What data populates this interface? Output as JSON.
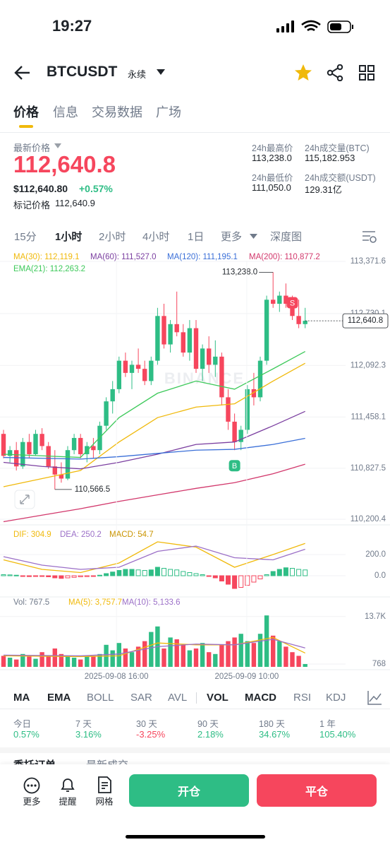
{
  "status_bar": {
    "time": "19:27"
  },
  "header": {
    "symbol": "BTCUSDT",
    "contract": "永续"
  },
  "tabs": [
    "价格",
    "信息",
    "交易数据",
    "广场"
  ],
  "price_info": {
    "latest_label": "最新价格",
    "latest_price": "112,640.8",
    "usd_price": "$112,640.80",
    "change": "+0.57%",
    "mark_label": "标记价格",
    "mark_price": "112,640.9",
    "stats": [
      {
        "label": "24h最高价",
        "value": "113,238.0"
      },
      {
        "label": "24h成交量(BTC)",
        "value": "115,182.953"
      },
      {
        "label": "24h最低价",
        "value": "111,050.0"
      },
      {
        "label": "24h成交额(USDT)",
        "value": "129.31亿"
      }
    ]
  },
  "intervals": [
    "15分",
    "1小时",
    "2小时",
    "4小时",
    "1日",
    "更多",
    "深度图"
  ],
  "chart_data": [
    {
      "type": "candlestick",
      "watermark": "BINANCE",
      "up_color": "#2ebd85",
      "down_color": "#f6465d",
      "ylim": [
        110200.4,
        113371.6
      ],
      "yticks": [
        {
          "value": 113371.6,
          "label": "113,371.6"
        },
        {
          "value": 112730.1,
          "label": "112,730.1"
        },
        {
          "value": 112092.3,
          "label": "112,092.3"
        },
        {
          "value": 111458.1,
          "label": "111,458.1"
        },
        {
          "value": 110827.5,
          "label": "110,827.5"
        },
        {
          "value": 110200.4,
          "label": "110,200.4"
        }
      ],
      "grid": true,
      "ohlc": [
        [
          111250,
          111300,
          110950,
          110980
        ],
        [
          110980,
          111100,
          110900,
          111050
        ],
        [
          111050,
          111150,
          110800,
          110850
        ],
        [
          110850,
          111200,
          110820,
          111150
        ],
        [
          111150,
          111250,
          110950,
          111000
        ],
        [
          111000,
          111300,
          110980,
          111250
        ],
        [
          111250,
          111320,
          111050,
          111100
        ],
        [
          111100,
          111150,
          110820,
          110850
        ],
        [
          110850,
          111050,
          110566.5,
          110750
        ],
        [
          110750,
          110900,
          110650,
          110700
        ],
        [
          110700,
          111100,
          110680,
          111050
        ],
        [
          111050,
          111250,
          111000,
          111200
        ],
        [
          111200,
          111250,
          110950,
          111000
        ],
        [
          111000,
          111150,
          110900,
          111100
        ],
        [
          111100,
          111200,
          110950,
          111050
        ],
        [
          111050,
          111400,
          111000,
          111350
        ],
        [
          111350,
          111700,
          111300,
          111650
        ],
        [
          111650,
          111900,
          111500,
          111800
        ],
        [
          111800,
          112200,
          111750,
          112150
        ],
        [
          112150,
          112250,
          111950,
          112000
        ],
        [
          112000,
          112150,
          111800,
          112100
        ],
        [
          112100,
          112300,
          112000,
          112050
        ],
        [
          112050,
          112150,
          111850,
          111900
        ],
        [
          111900,
          112200,
          111850,
          112150
        ],
        [
          112150,
          112800,
          112100,
          112700
        ],
        [
          112700,
          112850,
          112300,
          112350
        ],
        [
          112350,
          112650,
          112250,
          112600
        ],
        [
          112600,
          113000,
          112450,
          112500
        ],
        [
          112500,
          112600,
          112200,
          112250
        ],
        [
          112250,
          112650,
          112150,
          112550
        ],
        [
          112550,
          112650,
          112000,
          112050
        ],
        [
          112050,
          112350,
          111900,
          112300
        ],
        [
          112300,
          112450,
          112000,
          112100
        ],
        [
          112100,
          112400,
          111950,
          112200
        ],
        [
          112200,
          112250,
          111600,
          111700
        ],
        [
          111700,
          111800,
          111300,
          111400
        ],
        [
          111400,
          111500,
          111050,
          111150
        ],
        [
          111150,
          111350,
          111050,
          111300
        ],
        [
          111300,
          111850,
          111250,
          111800
        ],
        [
          111800,
          112000,
          111600,
          111700
        ],
        [
          111700,
          112200,
          111650,
          112150
        ],
        [
          112150,
          112950,
          112100,
          112900
        ],
        [
          112900,
          113238.0,
          112800,
          112850
        ],
        [
          112850,
          113000,
          112750,
          112950
        ],
        [
          112950,
          113100,
          112800,
          112850
        ],
        [
          112850,
          112950,
          112650,
          112700
        ],
        [
          112700,
          112900,
          112550,
          112600
        ],
        [
          112600,
          112800,
          112550,
          112640.8
        ]
      ],
      "series": [
        {
          "name": "MA(30): 112,119.1",
          "color": "#f0b90b",
          "x": [
            0,
            6,
            12,
            18,
            24,
            30,
            36,
            42,
            47
          ],
          "values": [
            110600,
            110700,
            110800,
            111150,
            111450,
            111580,
            111620,
            111900,
            112119.1
          ]
        },
        {
          "name": "MA(60): 111,527.0",
          "color": "#7b3fa0",
          "x": [
            0,
            6,
            12,
            18,
            24,
            30,
            36,
            42,
            47
          ],
          "values": [
            110900,
            110850,
            110820,
            110900,
            111000,
            111120,
            111150,
            111350,
            111527.0
          ]
        },
        {
          "name": "MA(120): 111,195.1",
          "color": "#3a6fd8",
          "x": [
            0,
            6,
            12,
            18,
            24,
            30,
            36,
            42,
            47
          ],
          "values": [
            110960,
            110950,
            110940,
            110970,
            111010,
            111050,
            111060,
            111120,
            111195.1
          ]
        },
        {
          "name": "MA(200): 110,877.2",
          "color": "#d2386c",
          "x": [
            0,
            6,
            12,
            18,
            24,
            30,
            36,
            42,
            47
          ],
          "values": [
            110170,
            110250,
            110330,
            110420,
            110500,
            110580,
            110650,
            110760,
            110877.2
          ]
        },
        {
          "name": "EMA(21): 112,263.2",
          "color": "#3dc95a",
          "x": [
            0,
            6,
            12,
            18,
            24,
            30,
            36,
            42,
            47
          ],
          "values": [
            111000,
            110980,
            110960,
            111450,
            111750,
            111900,
            111800,
            112050,
            112263.2
          ]
        }
      ],
      "annotations": [
        {
          "text": "113,238.0",
          "x": 42,
          "value": 113238.0
        },
        {
          "text": "110,566.5",
          "x": 8,
          "value": 110566.5
        }
      ],
      "last_price": {
        "value": 112640.8,
        "label": "112,640.8"
      },
      "markers": [
        {
          "label": "S",
          "x": 45,
          "color": "#f6465d"
        },
        {
          "label": "B",
          "x": 36,
          "color": "#2ebd85"
        }
      ]
    },
    {
      "type": "macd",
      "up_color": "#2ebd85",
      "down_color": "#f6465d",
      "ylim": [
        -200,
        333.3
      ],
      "yticks": [
        {
          "value": 200,
          "label": "200.0"
        },
        {
          "value": 0,
          "label": "0.0"
        }
      ],
      "series": [
        {
          "name": "DIF: 304.9",
          "color": "#f0b90b",
          "x": [
            0,
            6,
            12,
            18,
            24,
            30,
            36,
            42,
            47
          ],
          "values": [
            150,
            60,
            30,
            120,
            320,
            270,
            80,
            200,
            304.9
          ]
        },
        {
          "name": "DEA: 250.2",
          "color": "#9b6fc7",
          "x": [
            0,
            6,
            12,
            18,
            24,
            30,
            36,
            42,
            47
          ],
          "values": [
            180,
            100,
            60,
            80,
            230,
            280,
            170,
            150,
            250.2
          ]
        },
        {
          "name": "MACD: 54.7",
          "color": "#c99400",
          "type": "bar",
          "values": [
            10,
            8,
            5,
            -5,
            -8,
            -5,
            -3,
            -10,
            -20,
            -25,
            -20,
            -15,
            -10,
            -8,
            -5,
            5,
            20,
            35,
            50,
            60,
            60,
            55,
            50,
            55,
            80,
            70,
            60,
            55,
            40,
            30,
            20,
            10,
            -5,
            -20,
            -50,
            -80,
            -120,
            -110,
            -90,
            -60,
            -30,
            10,
            40,
            60,
            75,
            70,
            60,
            54.7
          ]
        }
      ]
    },
    {
      "type": "volume",
      "ylim": [
        0,
        14230
      ],
      "yticks": [
        {
          "value": 13700,
          "label": "13.7K"
        },
        768
      ],
      "xticks": [
        {
          "value": 17.6,
          "label": "2025-09-08 16:00"
        },
        {
          "value": 37.9,
          "label": "2025-09-09 10:00"
        }
      ],
      "series": [
        {
          "name": "Vol: 767.5",
          "color": "#707a8a",
          "type": "bar",
          "values": [
            3000,
            2500,
            2000,
            3500,
            2800,
            2200,
            4000,
            3000,
            5000,
            3500,
            3000,
            2500,
            2000,
            2800,
            3000,
            3500,
            6000,
            4500,
            6500,
            5000,
            4000,
            5500,
            7000,
            9500,
            11000,
            5000,
            8000,
            7500,
            6000,
            4500,
            5000,
            6500,
            4000,
            3500,
            6000,
            7000,
            8000,
            9000,
            7000,
            6500,
            9000,
            14000,
            8500,
            7000,
            5500,
            4000,
            3000,
            767.5
          ]
        },
        {
          "name": "MA(5): 3,757.7",
          "color": "#f0b90b",
          "x": [
            0,
            6,
            12,
            18,
            24,
            30,
            36,
            42,
            47
          ],
          "values": [
            3000,
            2900,
            2800,
            3000,
            6500,
            6000,
            6000,
            8000,
            3757.7
          ]
        },
        {
          "name": "MA(10): 5,133.6",
          "color": "#9b6fc7",
          "x": [
            0,
            6,
            12,
            18,
            24,
            30,
            36,
            42,
            47
          ],
          "values": [
            3200,
            3100,
            3000,
            3500,
            5500,
            6200,
            6000,
            7500,
            5133.6
          ]
        }
      ]
    }
  ],
  "indicators": {
    "main": [
      "MA",
      "EMA",
      "BOLL",
      "SAR",
      "AVL"
    ],
    "sub": [
      "VOL",
      "MACD",
      "RSI",
      "KDJ"
    ]
  },
  "performance": [
    {
      "period": "今日",
      "change": "0.57%"
    },
    {
      "period": "7 天",
      "change": "3.16%"
    },
    {
      "period": "30 天",
      "change": "-3.25%"
    },
    {
      "period": "90 天",
      "change": "2.18%"
    },
    {
      "period": "180 天",
      "change": "34.67%"
    },
    {
      "period": "1 年",
      "change": "105.40%"
    }
  ],
  "order_tabs": [
    "委托订单",
    "最新成交"
  ],
  "bottom_bar": {
    "actions": [
      "更多",
      "提醒",
      "网格"
    ],
    "open": "开仓",
    "close": "平仓"
  }
}
